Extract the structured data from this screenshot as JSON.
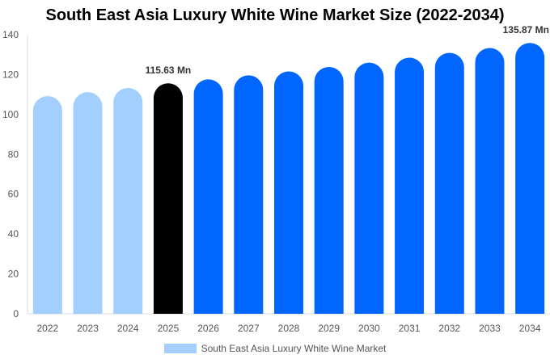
{
  "chart_data": {
    "type": "bar",
    "title": "South East Asia Luxury White Wine Market Size (2022-2034)",
    "xlabel": "",
    "ylabel": "",
    "ylim": [
      0,
      140
    ],
    "yticks": [
      0,
      20,
      40,
      60,
      80,
      100,
      120,
      140
    ],
    "categories": [
      "2022",
      "2023",
      "2024",
      "2025",
      "2026",
      "2027",
      "2028",
      "2029",
      "2030",
      "2031",
      "2032",
      "2033",
      "2034"
    ],
    "series": [
      {
        "name": "South East Asia Luxury White Wine Market",
        "values": [
          109.2,
          111.2,
          113.3,
          115.63,
          117.6,
          119.6,
          121.6,
          123.8,
          126.0,
          128.5,
          130.9,
          133.3,
          135.87
        ]
      }
    ],
    "bar_colors": [
      "#a3cfff",
      "#a3cfff",
      "#a3cfff",
      "#000000",
      "#0066ff",
      "#0066ff",
      "#0066ff",
      "#0066ff",
      "#0066ff",
      "#0066ff",
      "#0066ff",
      "#0066ff",
      "#0066ff"
    ],
    "data_labels": [
      {
        "category": "2025",
        "text": "115.63 Mn"
      },
      {
        "category": "2034",
        "text": "135.87 Mn"
      }
    ],
    "legend": {
      "label": "South East Asia Luxury White Wine Market",
      "color": "#a3cfff",
      "position": "bottom"
    },
    "grid": false
  }
}
